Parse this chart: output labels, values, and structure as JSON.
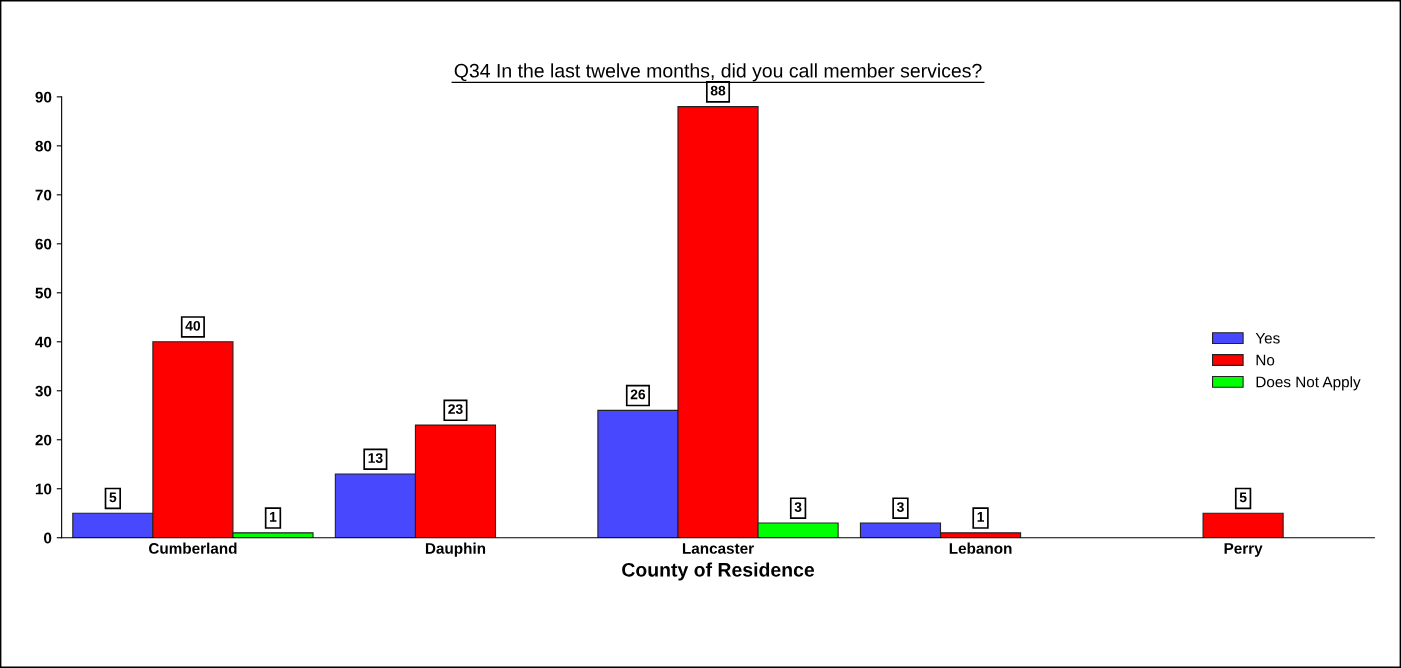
{
  "chart_data": {
    "type": "bar",
    "title": "Q34 In the last twelve months, did you call member services?",
    "xlabel": "County of Residence",
    "categories": [
      "Cumberland",
      "Dauphin",
      "Lancaster",
      "Lebanon",
      "Perry"
    ],
    "series": [
      {
        "name": "Yes",
        "color": "#4848ff",
        "values": [
          5,
          13,
          26,
          3,
          null
        ]
      },
      {
        "name": "No",
        "color": "#ff0000",
        "values": [
          40,
          23,
          88,
          1,
          5
        ]
      },
      {
        "name": "Does Not Apply",
        "color": "#00ff00",
        "values": [
          1,
          null,
          3,
          null,
          null
        ]
      }
    ],
    "ylim": [
      0,
      90
    ],
    "yticks": [
      0,
      10,
      20,
      30,
      40,
      50,
      60,
      70,
      80,
      90
    ],
    "grid": false,
    "legend": "right",
    "data_labels": true
  }
}
